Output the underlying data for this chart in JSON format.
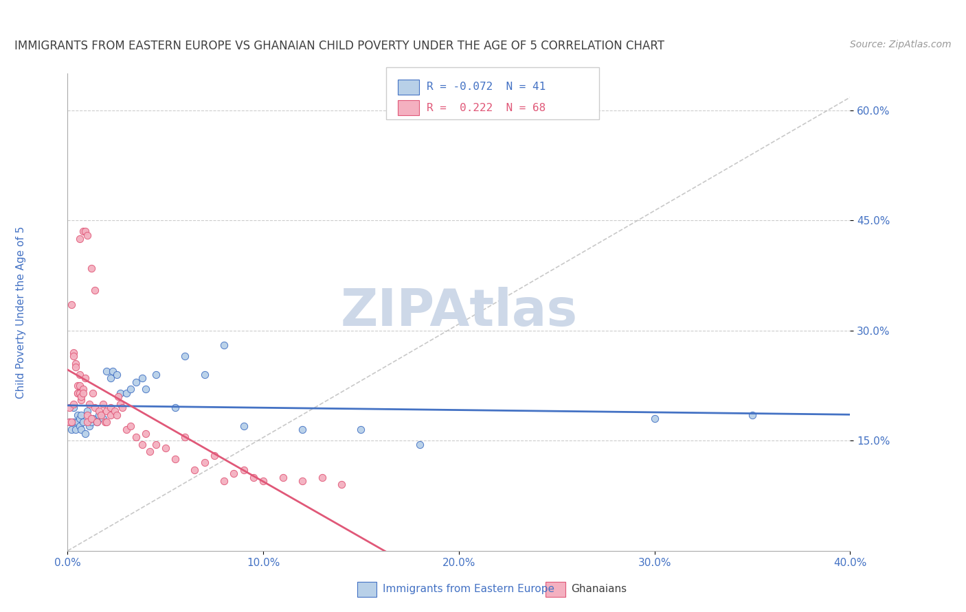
{
  "title": "IMMIGRANTS FROM EASTERN EUROPE VS GHANAIAN CHILD POVERTY UNDER THE AGE OF 5 CORRELATION CHART",
  "source": "Source: ZipAtlas.com",
  "ylabel": "Child Poverty Under the Age of 5",
  "legend_labels": [
    "Immigrants from Eastern Europe",
    "Ghanaians"
  ],
  "r_blue": -0.072,
  "n_blue": 41,
  "r_pink": 0.222,
  "n_pink": 68,
  "blue_color": "#b8d0e8",
  "pink_color": "#f4b0c0",
  "blue_line_color": "#4472c4",
  "pink_line_color": "#e05878",
  "axis_color": "#4472c4",
  "title_color": "#404040",
  "source_color": "#999999",
  "watermark_color": "#cdd8e8",
  "xmin": 0.0,
  "xmax": 0.4,
  "ymin": 0.0,
  "ymax": 0.65,
  "yticks": [
    0.15,
    0.3,
    0.45,
    0.6
  ],
  "xticks": [
    0.0,
    0.1,
    0.2,
    0.3,
    0.4
  ],
  "blue_scatter_x": [
    0.001,
    0.002,
    0.003,
    0.003,
    0.004,
    0.005,
    0.005,
    0.006,
    0.006,
    0.007,
    0.007,
    0.008,
    0.009,
    0.01,
    0.011,
    0.012,
    0.013,
    0.015,
    0.016,
    0.018,
    0.02,
    0.022,
    0.023,
    0.025,
    0.027,
    0.03,
    0.032,
    0.035,
    0.038,
    0.04,
    0.045,
    0.055,
    0.06,
    0.07,
    0.08,
    0.09,
    0.12,
    0.15,
    0.18,
    0.3,
    0.35
  ],
  "blue_scatter_y": [
    0.175,
    0.165,
    0.195,
    0.175,
    0.165,
    0.185,
    0.175,
    0.17,
    0.18,
    0.165,
    0.185,
    0.175,
    0.16,
    0.19,
    0.17,
    0.175,
    0.18,
    0.175,
    0.185,
    0.18,
    0.245,
    0.235,
    0.245,
    0.24,
    0.215,
    0.215,
    0.22,
    0.23,
    0.235,
    0.22,
    0.24,
    0.195,
    0.265,
    0.24,
    0.28,
    0.17,
    0.165,
    0.165,
    0.145,
    0.18,
    0.185
  ],
  "pink_scatter_x": [
    0.001,
    0.001,
    0.002,
    0.002,
    0.003,
    0.003,
    0.003,
    0.004,
    0.004,
    0.005,
    0.005,
    0.005,
    0.006,
    0.006,
    0.006,
    0.007,
    0.007,
    0.008,
    0.008,
    0.009,
    0.01,
    0.01,
    0.011,
    0.012,
    0.013,
    0.014,
    0.015,
    0.016,
    0.017,
    0.018,
    0.019,
    0.02,
    0.02,
    0.022,
    0.022,
    0.024,
    0.025,
    0.026,
    0.027,
    0.028,
    0.03,
    0.032,
    0.035,
    0.038,
    0.04,
    0.042,
    0.045,
    0.05,
    0.055,
    0.06,
    0.065,
    0.07,
    0.075,
    0.08,
    0.085,
    0.09,
    0.095,
    0.1,
    0.11,
    0.12,
    0.13,
    0.14,
    0.006,
    0.008,
    0.009,
    0.01,
    0.012,
    0.014
  ],
  "pink_scatter_y": [
    0.175,
    0.195,
    0.335,
    0.175,
    0.27,
    0.265,
    0.2,
    0.255,
    0.25,
    0.215,
    0.225,
    0.215,
    0.215,
    0.225,
    0.24,
    0.205,
    0.21,
    0.22,
    0.215,
    0.235,
    0.185,
    0.175,
    0.2,
    0.18,
    0.215,
    0.195,
    0.175,
    0.19,
    0.185,
    0.2,
    0.175,
    0.19,
    0.175,
    0.185,
    0.195,
    0.19,
    0.185,
    0.21,
    0.2,
    0.195,
    0.165,
    0.17,
    0.155,
    0.145,
    0.16,
    0.135,
    0.145,
    0.14,
    0.125,
    0.155,
    0.11,
    0.12,
    0.13,
    0.095,
    0.105,
    0.11,
    0.1,
    0.095,
    0.1,
    0.095,
    0.1,
    0.09,
    0.425,
    0.435,
    0.435,
    0.43,
    0.385,
    0.355
  ]
}
